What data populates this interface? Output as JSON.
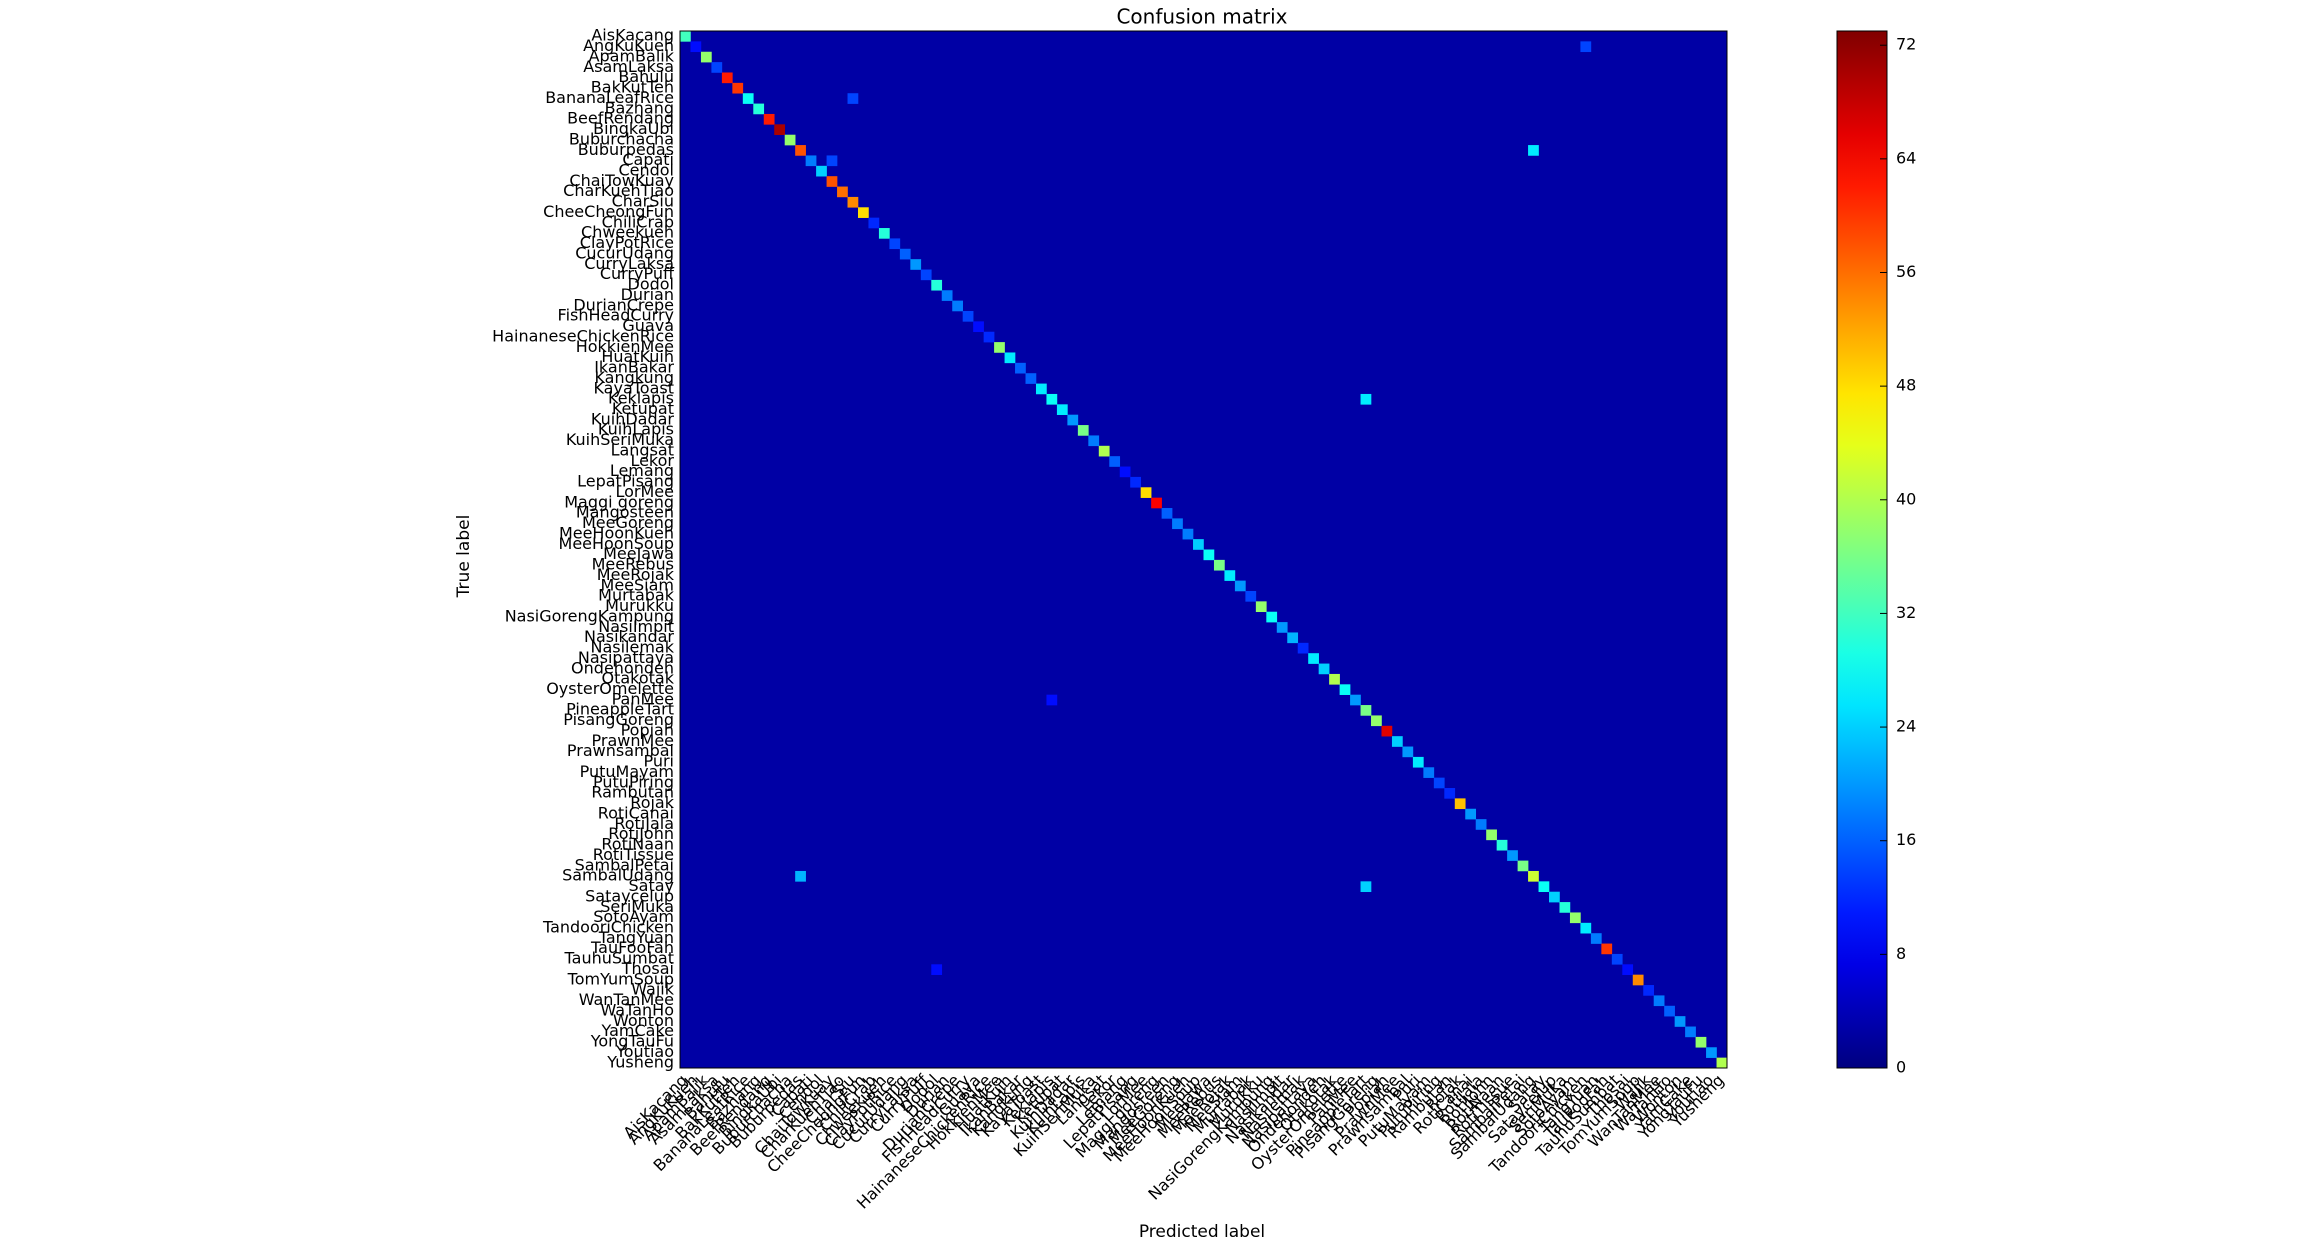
{
  "chart_data": {
    "type": "heatmap",
    "title": "Confusion matrix",
    "x_label": "Predicted label",
    "y_label": "True label",
    "colormap": "jet",
    "categories": [
      "AisKacang",
      "AngKuKueh",
      "ApamBalik",
      "AsamLaksa",
      "Bahulu",
      "BakKutTeh",
      "BananaLeafRice",
      "Bazhang",
      "BeefRendang",
      "BingkaUbi",
      "Buburchacha",
      "Buburpedas",
      "Capati",
      "Cendol",
      "ChaiTowKuay",
      "CharKuehTiao",
      "CharSiu",
      "CheeCheongFun",
      "ChiliCrab",
      "Chweekueh",
      "ClayPotRice",
      "CucurUdang",
      "CurryLaksa",
      "CurryPuff",
      "Dodol",
      "Durian",
      "DurianCrepe",
      "FishHeadCurry",
      "Guava",
      "HainaneseChickenRice",
      "HokkienMee",
      "HuatKuih",
      "IkanBakar",
      "Kangkung",
      "KayaToast",
      "Keklapis",
      "Ketupat",
      "KuihDadar",
      "KuihLapis",
      "KuihSeriMuka",
      "Langsat",
      "Lekor",
      "Lemang",
      "LepatPisang",
      "LorMee",
      "Maggi goreng",
      "Mangosteen",
      "MeeGoreng",
      "MeeHoonKueh",
      "MeeHoonSoup",
      "MeeJawa",
      "MeeRebus",
      "MeeRojak",
      "MeeSiam",
      "Murtabak",
      "Murukku",
      "NasiGorengKampung",
      "NasiImpit",
      "Nasikandar",
      "Nasilemak",
      "Nasipattaya",
      "Ondehondeh",
      "Otakotak",
      "OysterOmelette",
      "PanMee",
      "PineappleTart",
      "PisangGoreng",
      "Popiah",
      "PrawnMee",
      "Prawnsambal",
      "Puri",
      "PutuMayam",
      "PutuPiring",
      "Rambutan",
      "Rojak",
      "RotiCanai",
      "RotiJala",
      "RotiJohn",
      "RotiNaan",
      "RotiTissue",
      "SambalPetai",
      "SambalUdang",
      "Satay",
      "Sataycelup",
      "SeriMuka",
      "SotoAyam",
      "TandooriChicken",
      "TangYuan",
      "TauFooFah",
      "TauhuSumbat",
      "Thosai",
      "TomYumSoup",
      "Wajik",
      "WanTanMee",
      "WaTanHo",
      "Wonton",
      "YamCake",
      "YongTauFu",
      "Youtiao",
      "Yusheng"
    ],
    "diagonal": [
      32,
      10,
      38,
      14,
      62,
      60,
      28,
      30,
      62,
      70,
      38,
      58,
      18,
      24,
      58,
      56,
      54,
      48,
      12,
      30,
      14,
      16,
      20,
      14,
      30,
      18,
      18,
      14,
      10,
      12,
      38,
      26,
      16,
      16,
      26,
      28,
      26,
      20,
      36,
      18,
      40,
      16,
      10,
      12,
      48,
      64,
      16,
      18,
      18,
      24,
      28,
      36,
      26,
      20,
      14,
      38,
      28,
      20,
      22,
      12,
      26,
      24,
      40,
      28,
      20,
      36,
      38,
      66,
      24,
      20,
      26,
      18,
      14,
      12,
      50,
      20,
      18,
      38,
      30,
      20,
      36,
      42,
      28,
      24,
      30,
      38,
      26,
      18,
      60,
      14,
      10,
      54,
      12,
      18,
      16,
      20,
      18,
      38,
      20,
      40
    ],
    "off_diagonal": [
      [
        11,
        81,
        26
      ],
      [
        35,
        65,
        26
      ],
      [
        81,
        11,
        22
      ],
      [
        82,
        65,
        24
      ],
      [
        6,
        16,
        14
      ],
      [
        1,
        86,
        14
      ],
      [
        12,
        14,
        14
      ],
      [
        64,
        35,
        10
      ],
      [
        90,
        24,
        10
      ]
    ],
    "clim": [
      0,
      73
    ],
    "cticks": [
      0,
      8,
      16,
      24,
      32,
      40,
      48,
      56,
      64,
      72
    ]
  }
}
